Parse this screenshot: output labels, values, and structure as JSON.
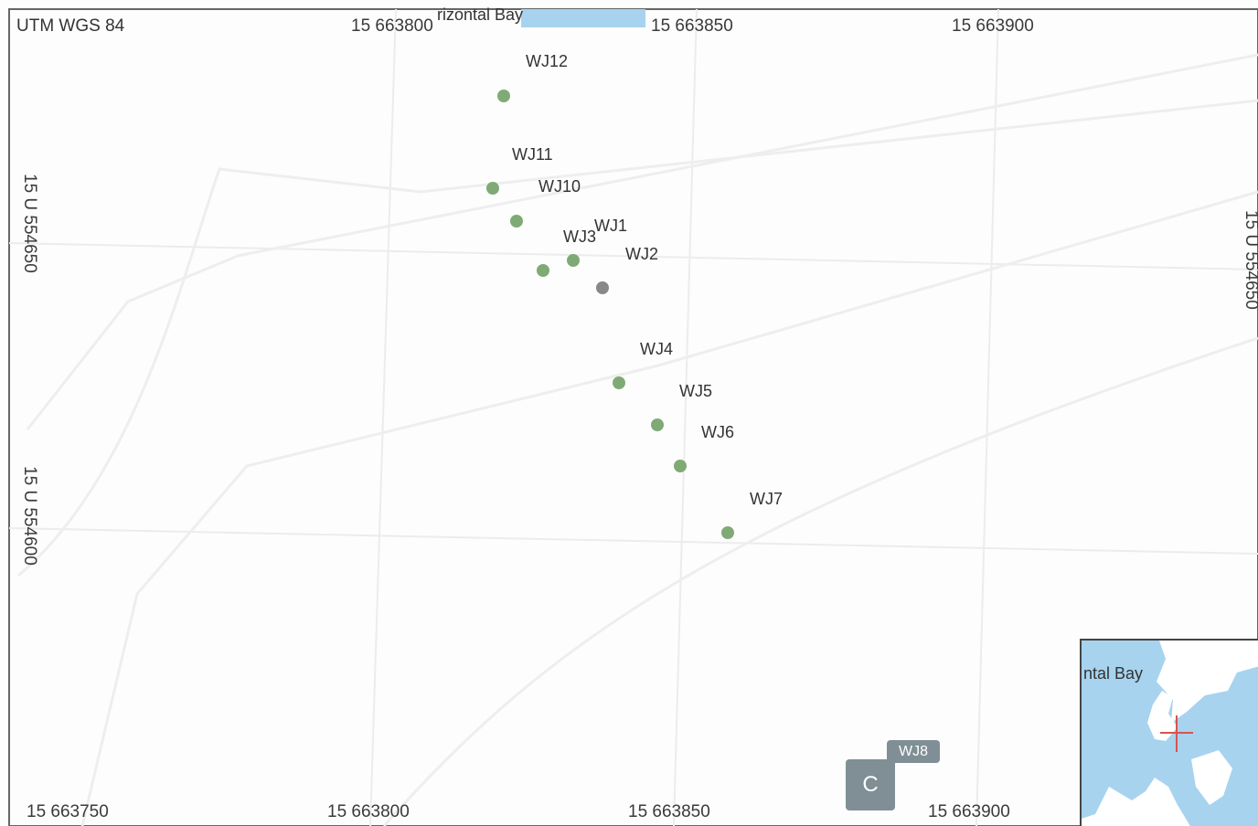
{
  "map": {
    "crs_label": "UTM WGS 84",
    "bay_label": "rizontal Bay",
    "top_easting_labels": [
      "15 663800",
      "15 663850",
      "15 663900"
    ],
    "bottom_easting_labels": [
      "15 663750",
      "15 663800",
      "15 663850",
      "15 663900"
    ],
    "left_northing_labels": [
      "15 U 554650",
      "15 U 554600"
    ],
    "right_northing_labels": [
      "15 U 554650"
    ],
    "points": [
      {
        "id": "WJ12",
        "label": "WJ12",
        "color": "#7faa75"
      },
      {
        "id": "WJ11",
        "label": "WJ11",
        "color": "#7faa75"
      },
      {
        "id": "WJ10",
        "label": "WJ10",
        "color": "#7faa75"
      },
      {
        "id": "WJ3",
        "label": "WJ3",
        "color": "#7faa75"
      },
      {
        "id": "WJ1",
        "label": "WJ1",
        "color": "#7faa75"
      },
      {
        "id": "WJ2",
        "label": "WJ2",
        "color": "#888888"
      },
      {
        "id": "WJ4",
        "label": "WJ4",
        "color": "#7faa75"
      },
      {
        "id": "WJ5",
        "label": "WJ5",
        "color": "#7faa75"
      },
      {
        "id": "WJ6",
        "label": "WJ6",
        "color": "#7faa75"
      },
      {
        "id": "WJ7",
        "label": "WJ7",
        "color": "#7faa75"
      }
    ],
    "wj8_label": "WJ8",
    "c_button_label": "C",
    "inset": {
      "label": "ntal Bay",
      "water_color": "#a7d3ee",
      "marker_color": "#d9534f"
    },
    "colors": {
      "grid_line": "#e8e8e8",
      "frame": "#555555",
      "marker_default": "#7faa75"
    }
  }
}
